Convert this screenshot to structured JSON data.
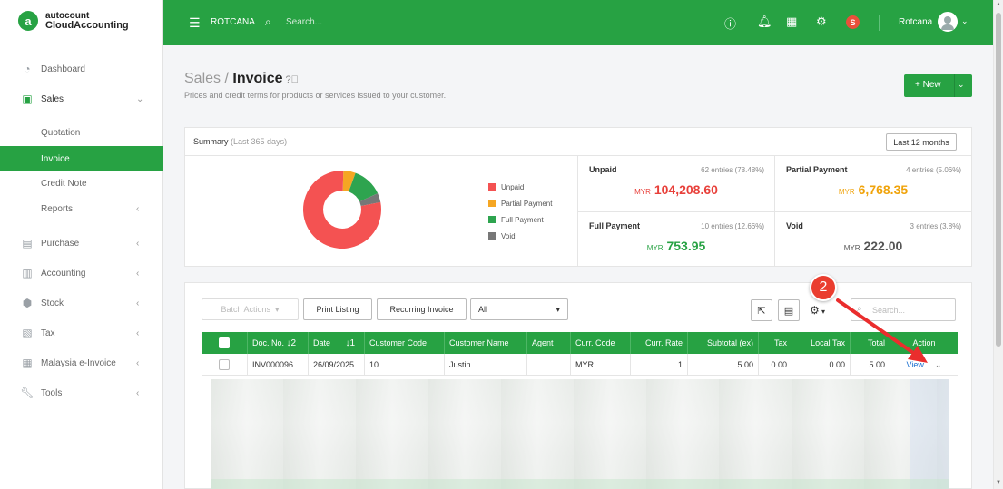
{
  "app": {
    "brand_line1": "autocount",
    "brand_line2": "CloudAccounting",
    "logo_letter": "a"
  },
  "sidebar": {
    "items": [
      {
        "label": "Dashboard",
        "icon": "dashboard-icon"
      },
      {
        "label": "Sales",
        "icon": "sales-icon",
        "expanded": true
      },
      {
        "label": "Quotation"
      },
      {
        "label": "Invoice",
        "active": true
      },
      {
        "label": "Credit Note"
      },
      {
        "label": "Reports"
      },
      {
        "label": "Purchase",
        "icon": "purchase-icon"
      },
      {
        "label": "Accounting",
        "icon": "accounting-icon"
      },
      {
        "label": "Stock",
        "icon": "stock-icon"
      },
      {
        "label": "Tax",
        "icon": "tax-icon"
      },
      {
        "label": "Malaysia e-Invoice",
        "icon": "einvoice-icon"
      },
      {
        "label": "Tools",
        "icon": "tools-icon"
      }
    ]
  },
  "topbar": {
    "company": "ROTCANA",
    "search_placeholder": "Search...",
    "user_badge": "S",
    "user_name": "Rotcana"
  },
  "page": {
    "breadcrumb_parent": "Sales",
    "breadcrumb_sep": " / ",
    "title": "Invoice",
    "description": "Prices and credit terms for products or services issued to your customer.",
    "new_button": "+ New"
  },
  "summary": {
    "title": "Summary",
    "period_note": "(Last 365 days)",
    "range_button": "Last 12 months",
    "legend": [
      {
        "label": "Unpaid",
        "color": "#f45252"
      },
      {
        "label": "Partial Payment",
        "color": "#f5a623"
      },
      {
        "label": "Full Payment",
        "color": "#2ea44f"
      },
      {
        "label": "Void",
        "color": "#777777"
      }
    ],
    "chart_data": {
      "type": "pie",
      "categories": [
        "Unpaid",
        "Partial Payment",
        "Full Payment",
        "Void"
      ],
      "values": [
        78.48,
        5.06,
        12.66,
        3.8
      ]
    },
    "stats": [
      {
        "name": "Unpaid",
        "entries": "62 entries (78.48%)",
        "currency": "MYR",
        "amount": "104,208.60",
        "color": "#e8403a"
      },
      {
        "name": "Partial Payment",
        "entries": "4 entries (5.06%)",
        "currency": "MYR",
        "amount": "6,768.35",
        "color": "#f0a30a"
      },
      {
        "name": "Full Payment",
        "entries": "10 entries (12.66%)",
        "currency": "MYR",
        "amount": "753.95",
        "color": "#27a243"
      },
      {
        "name": "Void",
        "entries": "3 entries (3.8%)",
        "currency": "MYR",
        "amount": "222.00",
        "color": "#555555"
      }
    ]
  },
  "listing": {
    "batch_actions": "Batch Actions",
    "print_listing": "Print Listing",
    "recurring_invoice": "Recurring Invoice",
    "filter_value": "All",
    "search_placeholder": "Search...",
    "columns": [
      "Doc. No.",
      "Date",
      "Customer Code",
      "Customer Name",
      "Agent",
      "Curr. Code",
      "Curr. Rate",
      "Subtotal (ex)",
      "Tax",
      "Local Tax",
      "Total",
      "Action"
    ],
    "docno_sort": "↓2",
    "date_sort": "↓1",
    "rows": [
      {
        "doc_no": "INV000096",
        "date": "26/09/2025",
        "customer_code": "10",
        "customer_name": "Justin",
        "agent": "",
        "curr_code": "MYR",
        "curr_rate": "1",
        "subtotal": "5.00",
        "tax": "0.00",
        "local_tax": "0.00",
        "total": "5.00",
        "action": "View"
      }
    ]
  },
  "annotation": {
    "step": "2"
  }
}
